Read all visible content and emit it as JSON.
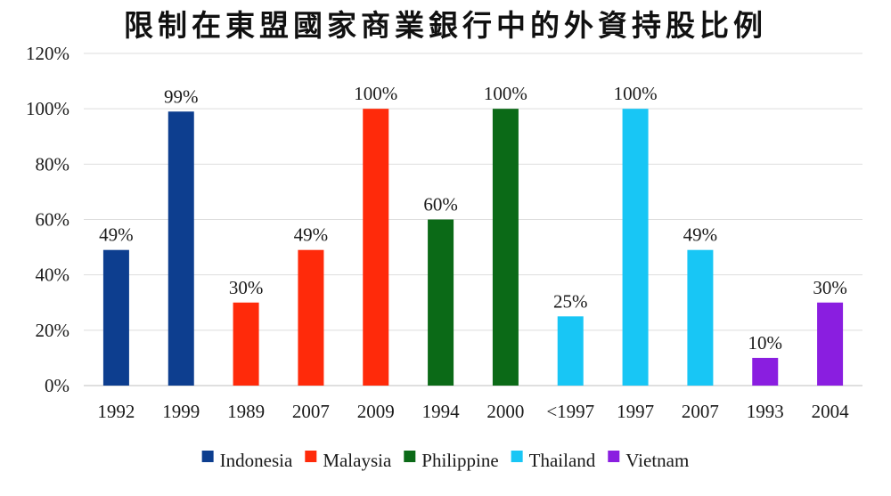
{
  "chart_data": {
    "type": "bar",
    "title": "限制在東盟國家商業銀行中的外資持股比例",
    "xlabel": "",
    "ylabel": "",
    "ylim": [
      0,
      120
    ],
    "y_ticks": [
      "0%",
      "20%",
      "40%",
      "60%",
      "80%",
      "100%",
      "120%"
    ],
    "grid": true,
    "legend_position": "bottom",
    "categories": [
      "1992",
      "1999",
      "1989",
      "2007",
      "2009",
      "1994",
      "2000",
      "<1997",
      "1997",
      "2007",
      "1993",
      "2004"
    ],
    "values": [
      49,
      99,
      30,
      49,
      100,
      60,
      100,
      25,
      100,
      49,
      10,
      30
    ],
    "data_labels": [
      "49%",
      "99%",
      "30%",
      "49%",
      "100%",
      "60%",
      "100%",
      "25%",
      "100%",
      "49%",
      "10%",
      "30%"
    ],
    "bar_series": [
      0,
      0,
      1,
      1,
      1,
      2,
      2,
      3,
      3,
      3,
      4,
      4
    ],
    "series": [
      {
        "name": "Indonesia",
        "color": "#0d3e8f"
      },
      {
        "name": "Malaysia",
        "color": "#ff2a0a"
      },
      {
        "name": "Philippine",
        "color": "#0b6a17"
      },
      {
        "name": "Thailand",
        "color": "#18c6f5"
      },
      {
        "name": "Vietnam",
        "color": "#8a1ee0"
      }
    ]
  }
}
